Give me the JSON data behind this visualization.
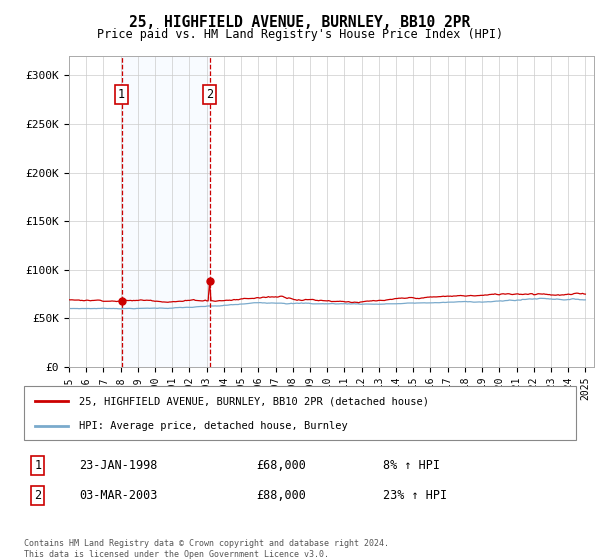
{
  "title": "25, HIGHFIELD AVENUE, BURNLEY, BB10 2PR",
  "subtitle": "Price paid vs. HM Land Registry's House Price Index (HPI)",
  "legend_line1": "25, HIGHFIELD AVENUE, BURNLEY, BB10 2PR (detached house)",
  "legend_line2": "HPI: Average price, detached house, Burnley",
  "annotation1_date": "23-JAN-1998",
  "annotation1_price": "£68,000",
  "annotation1_hpi": "8% ↑ HPI",
  "annotation1_year": 1998.06,
  "annotation1_value": 68000,
  "annotation2_date": "03-MAR-2003",
  "annotation2_price": "£88,000",
  "annotation2_hpi": "23% ↑ HPI",
  "annotation2_year": 2003.17,
  "annotation2_value": 88000,
  "red_line_color": "#cc0000",
  "blue_line_color": "#7aaacc",
  "shade_color": "#ddeeff",
  "vline_color": "#cc0000",
  "box_color": "#cc0000",
  "ylim_min": 0,
  "ylim_max": 320000,
  "xmin": 1995.0,
  "xmax": 2025.5,
  "footer": "Contains HM Land Registry data © Crown copyright and database right 2024.\nThis data is licensed under the Open Government Licence v3.0.",
  "yticks": [
    0,
    50000,
    100000,
    150000,
    200000,
    250000,
    300000
  ],
  "ytick_labels": [
    "£0",
    "£50K",
    "£100K",
    "£150K",
    "£200K",
    "£250K",
    "£300K"
  ],
  "xticks": [
    1995,
    1996,
    1997,
    1998,
    1999,
    2000,
    2001,
    2002,
    2003,
    2004,
    2005,
    2006,
    2007,
    2008,
    2009,
    2010,
    2011,
    2012,
    2013,
    2014,
    2015,
    2016,
    2017,
    2018,
    2019,
    2020,
    2021,
    2022,
    2023,
    2024,
    2025
  ]
}
